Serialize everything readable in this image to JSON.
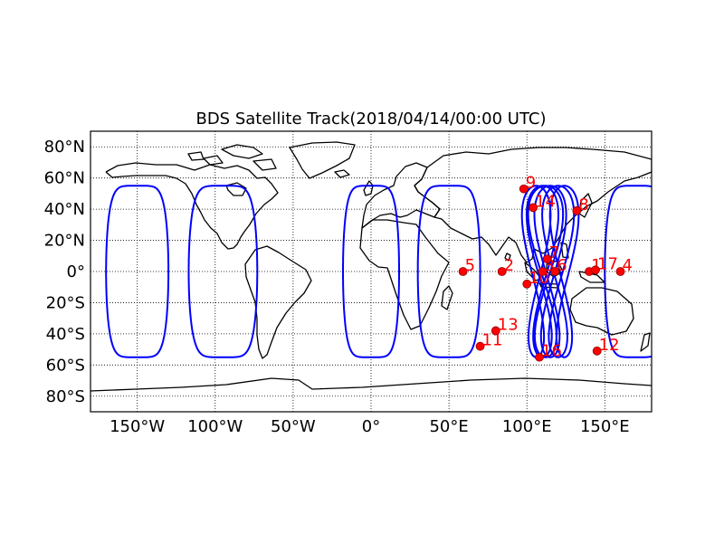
{
  "chart_data": {
    "type": "scatter",
    "title": "BDS Satellite Track(2018/04/14/00:00 UTC)",
    "xlabel": "",
    "ylabel": "",
    "xlim": [
      -180,
      180
    ],
    "ylim": [
      -90,
      90
    ],
    "grid": true,
    "x_ticks": [
      {
        "value": -150,
        "label": "150°W"
      },
      {
        "value": -100,
        "label": "100°W"
      },
      {
        "value": -50,
        "label": "50°W"
      },
      {
        "value": 0,
        "label": "0°"
      },
      {
        "value": 50,
        "label": "50°E"
      },
      {
        "value": 100,
        "label": "100°E"
      },
      {
        "value": 150,
        "label": "150°E"
      }
    ],
    "y_ticks": [
      {
        "value": 80,
        "label": "80°N"
      },
      {
        "value": 60,
        "label": "60°N"
      },
      {
        "value": 40,
        "label": "40°N"
      },
      {
        "value": 20,
        "label": "20°N"
      },
      {
        "value": 0,
        "label": "0°"
      },
      {
        "value": -20,
        "label": "20°S"
      },
      {
        "value": -40,
        "label": "40°S"
      },
      {
        "value": -60,
        "label": "60°S"
      },
      {
        "value": -80,
        "label": "80°S"
      }
    ],
    "satellites": [
      {
        "id": "1",
        "lon": 140,
        "lat": 0
      },
      {
        "id": "2",
        "lon": 84,
        "lat": 0
      },
      {
        "id": "3",
        "lon": 110,
        "lat": 0
      },
      {
        "id": "4",
        "lon": 160,
        "lat": 0
      },
      {
        "id": "5",
        "lon": 59,
        "lat": 0
      },
      {
        "id": "6",
        "lon": 118,
        "lat": 0
      },
      {
        "id": "7",
        "lon": 113,
        "lat": 8
      },
      {
        "id": "8",
        "lon": 132,
        "lat": 39
      },
      {
        "id": "9",
        "lon": 98,
        "lat": 53
      },
      {
        "id": "10",
        "lon": 100,
        "lat": -8
      },
      {
        "id": "11",
        "lon": 70,
        "lat": -48
      },
      {
        "id": "12",
        "lon": 145,
        "lat": -51
      },
      {
        "id": "13",
        "lon": 80,
        "lat": -38
      },
      {
        "id": "14",
        "lon": 104,
        "lat": 41
      },
      {
        "id": "16",
        "lon": 108,
        "lat": -55
      },
      {
        "id": "17",
        "lon": 144,
        "lat": 1
      }
    ],
    "tracks": [
      {
        "type": "geo_loop",
        "center_lon": -150,
        "amplitude": 20
      },
      {
        "type": "geo_loop",
        "center_lon": -95,
        "amplitude": 22
      },
      {
        "type": "geo_loop",
        "center_lon": 0,
        "amplitude": 18
      },
      {
        "type": "geo_loop",
        "center_lon": 50,
        "amplitude": 20
      },
      {
        "type": "geo_loop",
        "center_lon": 170,
        "amplitude": 20
      },
      {
        "type": "figure8",
        "center_lon": 110,
        "amplitude": 8
      },
      {
        "type": "figure8",
        "center_lon": 115,
        "amplitude": 8
      },
      {
        "type": "figure8",
        "center_lon": 120,
        "amplitude": 8
      },
      {
        "type": "figure8",
        "center_lon": 106,
        "amplitude": 7
      },
      {
        "type": "figure8",
        "center_lon": 112,
        "amplitude": 9
      },
      {
        "type": "figure8",
        "center_lon": 124,
        "amplitude": 7
      }
    ],
    "colors": {
      "track": "#0000ff",
      "marker": "#ff0000",
      "marker_edge": "#8b0000",
      "label": "#ff0000",
      "coast": "#000000",
      "grid": "#000000"
    }
  }
}
